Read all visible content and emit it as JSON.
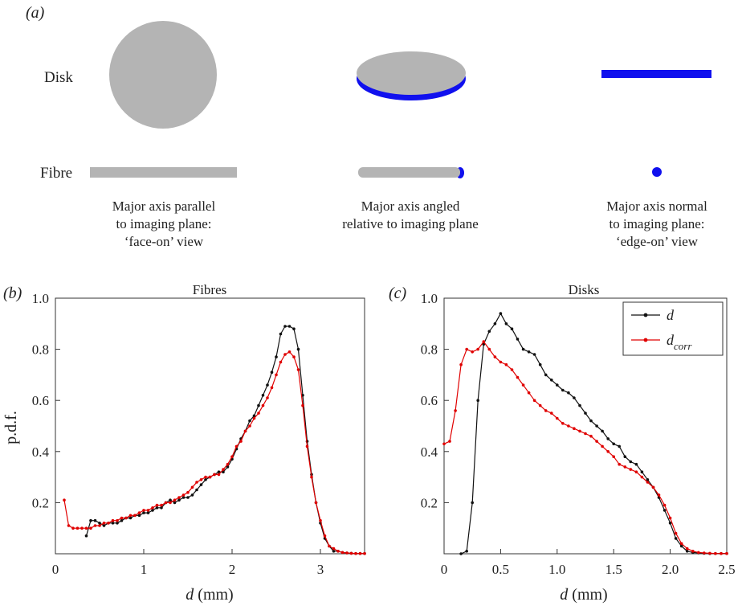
{
  "panel_a": {
    "label": "(a)",
    "row_labels": [
      "Disk",
      "Fibre"
    ],
    "captions": [
      [
        "Major axis parallel",
        "to imaging plane:",
        "‘face-on’ view"
      ],
      [
        "Major axis angled",
        "relative to imaging plane"
      ],
      [
        "Major axis normal",
        "to imaging plane:",
        "‘edge-on’ view"
      ]
    ],
    "colors": {
      "body": "#b4b4b4",
      "edge": "#1010ee"
    }
  },
  "axis_label_y": "p.d.f.",
  "chart_data": [
    {
      "type": "line",
      "panel_label": "(b)",
      "title": "Fibres",
      "xlabel_var": "d",
      "xlabel_unit": " (mm)",
      "ylabel": "p.d.f.",
      "xlim": [
        0,
        3.5
      ],
      "ylim": [
        0,
        1.0
      ],
      "xticks": [
        0,
        1,
        2,
        3
      ],
      "xtick_labels": [
        "0",
        "1",
        "2",
        "3"
      ],
      "yticks": [
        0.2,
        0.4,
        0.6,
        0.8,
        1.0
      ],
      "ytick_labels": [
        "0.2",
        "0.4",
        "0.6",
        "0.8",
        "1.0"
      ],
      "series": [
        {
          "color": "#111111",
          "x": [
            0.35,
            0.4,
            0.45,
            0.5,
            0.55,
            0.6,
            0.65,
            0.7,
            0.75,
            0.8,
            0.85,
            0.9,
            0.95,
            1.0,
            1.05,
            1.1,
            1.15,
            1.2,
            1.25,
            1.3,
            1.35,
            1.4,
            1.45,
            1.5,
            1.55,
            1.6,
            1.65,
            1.7,
            1.75,
            1.8,
            1.85,
            1.9,
            1.95,
            2.0,
            2.05,
            2.1,
            2.15,
            2.2,
            2.25,
            2.3,
            2.35,
            2.4,
            2.45,
            2.5,
            2.55,
            2.6,
            2.65,
            2.7,
            2.75,
            2.8,
            2.85,
            2.9,
            2.95,
            3.0,
            3.05,
            3.1,
            3.15,
            3.2,
            3.25,
            3.3,
            3.35,
            3.4,
            3.45,
            3.5
          ],
          "y": [
            0.07,
            0.13,
            0.13,
            0.12,
            0.11,
            0.12,
            0.12,
            0.12,
            0.13,
            0.14,
            0.14,
            0.15,
            0.15,
            0.16,
            0.16,
            0.17,
            0.18,
            0.18,
            0.2,
            0.21,
            0.2,
            0.21,
            0.22,
            0.22,
            0.23,
            0.25,
            0.27,
            0.29,
            0.3,
            0.31,
            0.32,
            0.32,
            0.34,
            0.37,
            0.41,
            0.45,
            0.48,
            0.52,
            0.54,
            0.58,
            0.62,
            0.66,
            0.71,
            0.77,
            0.86,
            0.89,
            0.89,
            0.88,
            0.8,
            0.62,
            0.44,
            0.31,
            0.2,
            0.12,
            0.06,
            0.03,
            0.01,
            0.01,
            0.005,
            0.003,
            0.002,
            0.001,
            0.001,
            0.001
          ]
        },
        {
          "color": "#e00000",
          "x": [
            0.1,
            0.15,
            0.2,
            0.25,
            0.3,
            0.35,
            0.4,
            0.45,
            0.5,
            0.55,
            0.6,
            0.65,
            0.7,
            0.75,
            0.8,
            0.85,
            0.9,
            0.95,
            1.0,
            1.05,
            1.1,
            1.15,
            1.2,
            1.25,
            1.3,
            1.35,
            1.4,
            1.45,
            1.5,
            1.55,
            1.6,
            1.65,
            1.7,
            1.75,
            1.8,
            1.85,
            1.9,
            1.95,
            2.0,
            2.05,
            2.1,
            2.15,
            2.2,
            2.25,
            2.3,
            2.35,
            2.4,
            2.45,
            2.5,
            2.55,
            2.6,
            2.65,
            2.7,
            2.75,
            2.8,
            2.85,
            2.9,
            2.95,
            3.0,
            3.05,
            3.1,
            3.15,
            3.2,
            3.25,
            3.3,
            3.35,
            3.4,
            3.45,
            3.5
          ],
          "y": [
            0.21,
            0.11,
            0.1,
            0.1,
            0.1,
            0.1,
            0.1,
            0.11,
            0.11,
            0.12,
            0.12,
            0.13,
            0.13,
            0.14,
            0.14,
            0.15,
            0.15,
            0.16,
            0.17,
            0.17,
            0.18,
            0.19,
            0.19,
            0.2,
            0.2,
            0.21,
            0.22,
            0.23,
            0.24,
            0.26,
            0.28,
            0.29,
            0.3,
            0.3,
            0.31,
            0.31,
            0.33,
            0.35,
            0.38,
            0.42,
            0.44,
            0.48,
            0.5,
            0.53,
            0.55,
            0.58,
            0.61,
            0.65,
            0.7,
            0.75,
            0.78,
            0.79,
            0.77,
            0.72,
            0.58,
            0.42,
            0.3,
            0.2,
            0.13,
            0.07,
            0.03,
            0.02,
            0.01,
            0.005,
            0.003,
            0.002,
            0.001,
            0.001,
            0.001
          ]
        }
      ]
    },
    {
      "type": "line",
      "panel_label": "(c)",
      "title": "Disks",
      "xlabel_var": "d",
      "xlabel_unit": " (mm)",
      "ylabel": "",
      "xlim": [
        0,
        2.5
      ],
      "ylim": [
        0,
        1.0
      ],
      "xticks": [
        0,
        0.5,
        1.0,
        1.5,
        2.0,
        2.5
      ],
      "xtick_labels": [
        "0",
        "0.5",
        "1.0",
        "1.5",
        "2.0",
        "2.5"
      ],
      "yticks": [
        0.2,
        0.4,
        0.6,
        0.8,
        1.0
      ],
      "ytick_labels": [
        "0.2",
        "0.4",
        "0.6",
        "0.8",
        "1.0"
      ],
      "legend": {
        "position": "top-right"
      },
      "series": [
        {
          "name": "d",
          "color": "#111111",
          "x": [
            0.15,
            0.2,
            0.25,
            0.3,
            0.35,
            0.4,
            0.45,
            0.5,
            0.55,
            0.6,
            0.65,
            0.7,
            0.75,
            0.8,
            0.85,
            0.9,
            0.95,
            1.0,
            1.05,
            1.1,
            1.15,
            1.2,
            1.25,
            1.3,
            1.35,
            1.4,
            1.45,
            1.5,
            1.55,
            1.6,
            1.65,
            1.7,
            1.75,
            1.8,
            1.85,
            1.9,
            1.95,
            2.0,
            2.05,
            2.1,
            2.15,
            2.2,
            2.25,
            2.3,
            2.35,
            2.4,
            2.45,
            2.5
          ],
          "y": [
            0.0,
            0.01,
            0.2,
            0.6,
            0.82,
            0.87,
            0.9,
            0.94,
            0.9,
            0.88,
            0.84,
            0.8,
            0.79,
            0.78,
            0.74,
            0.7,
            0.68,
            0.66,
            0.64,
            0.63,
            0.61,
            0.58,
            0.55,
            0.52,
            0.5,
            0.48,
            0.45,
            0.43,
            0.42,
            0.38,
            0.36,
            0.35,
            0.32,
            0.29,
            0.26,
            0.22,
            0.17,
            0.12,
            0.06,
            0.03,
            0.01,
            0.005,
            0.003,
            0.002,
            0.001,
            0.001,
            0.001,
            0.001
          ]
        },
        {
          "name": "corr",
          "color": "#e00000",
          "x": [
            0.0,
            0.05,
            0.1,
            0.15,
            0.2,
            0.25,
            0.3,
            0.35,
            0.4,
            0.45,
            0.5,
            0.55,
            0.6,
            0.65,
            0.7,
            0.75,
            0.8,
            0.85,
            0.9,
            0.95,
            1.0,
            1.05,
            1.1,
            1.15,
            1.2,
            1.25,
            1.3,
            1.35,
            1.4,
            1.45,
            1.5,
            1.55,
            1.6,
            1.65,
            1.7,
            1.75,
            1.8,
            1.85,
            1.9,
            1.95,
            2.0,
            2.05,
            2.1,
            2.15,
            2.2,
            2.25,
            2.3,
            2.35,
            2.4,
            2.45,
            2.5
          ],
          "y": [
            0.43,
            0.44,
            0.56,
            0.74,
            0.8,
            0.79,
            0.8,
            0.83,
            0.8,
            0.77,
            0.75,
            0.74,
            0.72,
            0.69,
            0.66,
            0.63,
            0.6,
            0.58,
            0.56,
            0.55,
            0.53,
            0.51,
            0.5,
            0.49,
            0.48,
            0.47,
            0.46,
            0.44,
            0.42,
            0.4,
            0.38,
            0.35,
            0.34,
            0.33,
            0.32,
            0.3,
            0.28,
            0.26,
            0.23,
            0.19,
            0.14,
            0.08,
            0.04,
            0.02,
            0.01,
            0.005,
            0.003,
            0.002,
            0.001,
            0.001,
            0.001
          ]
        }
      ]
    }
  ]
}
